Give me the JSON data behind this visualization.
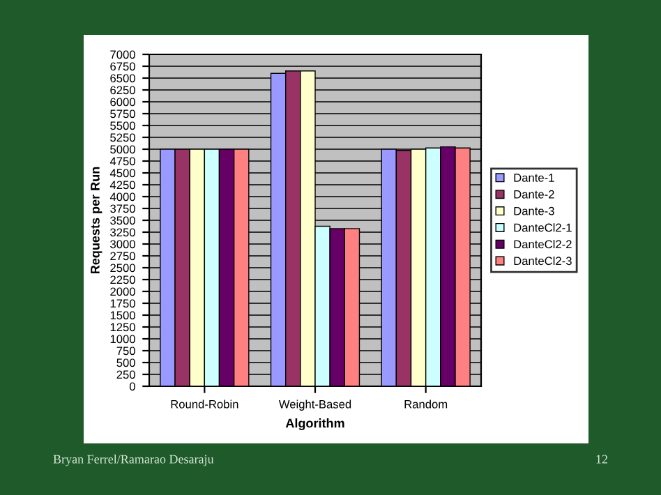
{
  "chart_data": {
    "type": "bar",
    "xlabel": "Algorithm",
    "ylabel": "Requests per Run",
    "categories": [
      "Round-Robin",
      "Weight-Based",
      "Random"
    ],
    "series": [
      {
        "name": "Dante-1",
        "color": "#9999ff",
        "values": [
          5000,
          6600,
          5000
        ]
      },
      {
        "name": "Dante-2",
        "color": "#993366",
        "values": [
          5000,
          6650,
          4975
        ]
      },
      {
        "name": "Dante-3",
        "color": "#ffffcc",
        "values": [
          5000,
          6650,
          5000
        ]
      },
      {
        "name": "DanteCl2-1",
        "color": "#ccffff",
        "values": [
          5000,
          3375,
          5025
        ]
      },
      {
        "name": "DanteCl2-2",
        "color": "#660066",
        "values": [
          5000,
          3325,
          5050
        ]
      },
      {
        "name": "DanteCl2-3",
        "color": "#ff8080",
        "values": [
          5000,
          3325,
          5025
        ]
      }
    ],
    "ylim": [
      0,
      7000
    ],
    "yticks": [
      0,
      250,
      500,
      750,
      1000,
      1250,
      1500,
      1750,
      2000,
      2250,
      2500,
      2750,
      3000,
      3250,
      3500,
      3750,
      4000,
      4250,
      4500,
      4750,
      5000,
      5250,
      5500,
      5750,
      6000,
      6250,
      6500,
      6750,
      7000
    ],
    "grid": "y",
    "legend": "right",
    "annotations": [
      "Bryan Ferrel/Ramarao Desaraju",
      "12"
    ]
  }
}
